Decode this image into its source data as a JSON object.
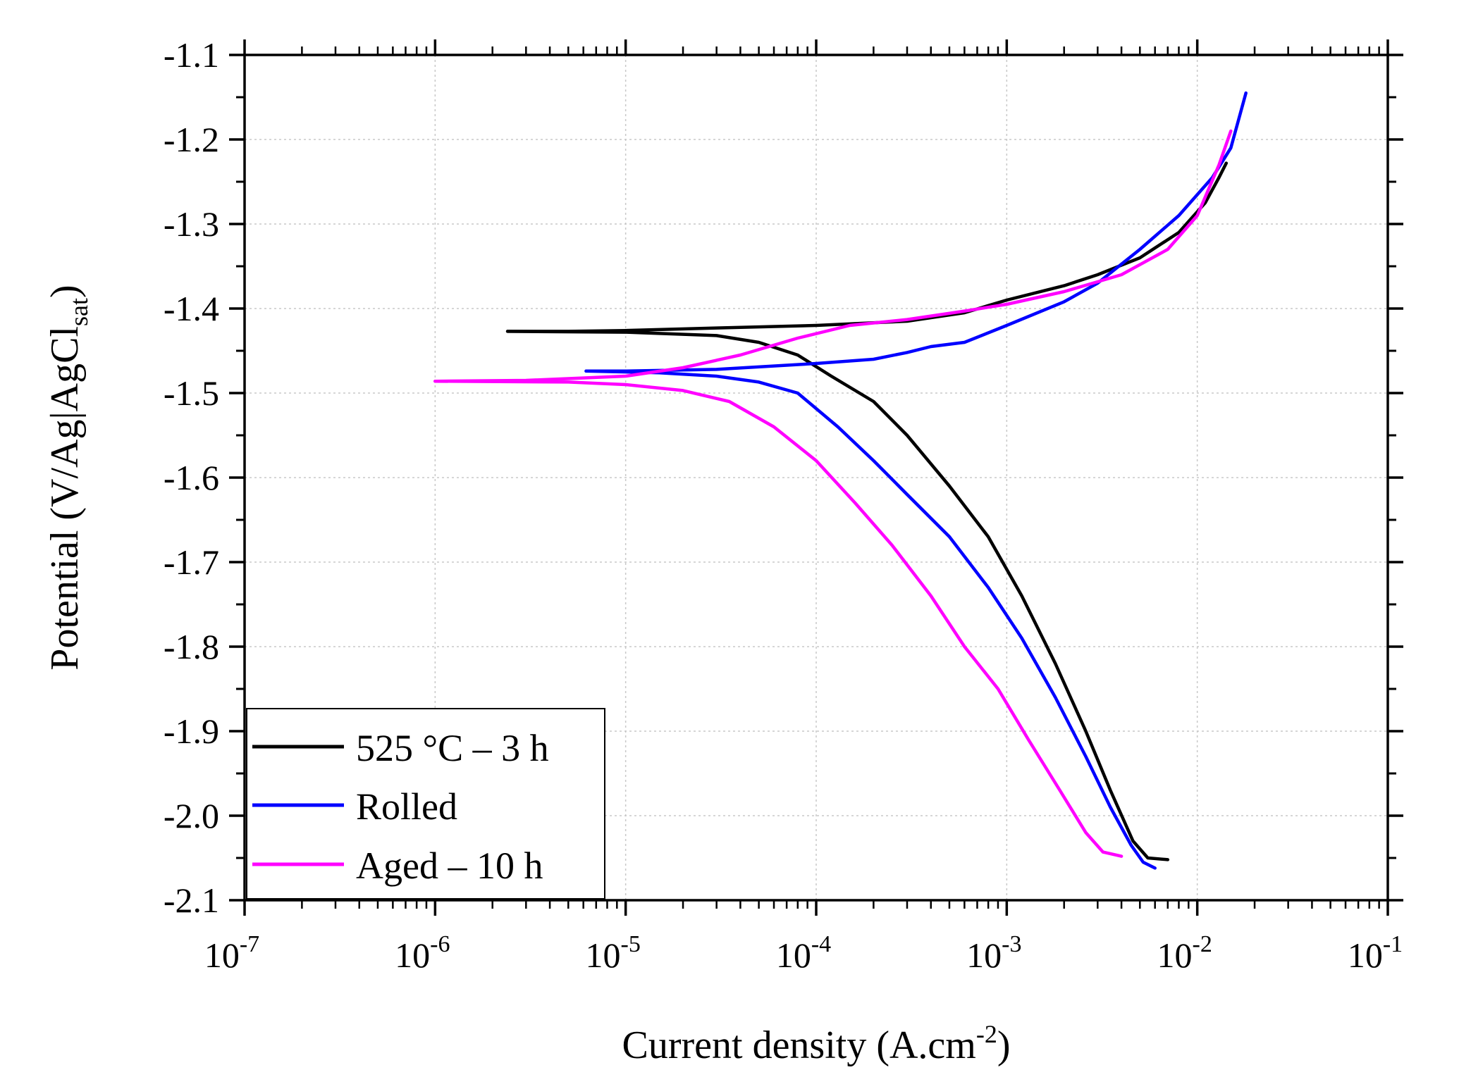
{
  "chart_data": {
    "type": "line",
    "title": "",
    "xlabel": {
      "main": "Current density (A.cm",
      "sup": "-2",
      "end": ")"
    },
    "ylabel": {
      "main": "Potential (V/Ag|AgCl",
      "sub": "sat",
      "end": ")"
    },
    "x_scale": "log",
    "xlim": [
      1e-07,
      0.1
    ],
    "ylim": [
      -2.1,
      -1.1
    ],
    "x_ticks": [
      {
        "base": "10",
        "exp": "-7"
      },
      {
        "base": "10",
        "exp": "-6"
      },
      {
        "base": "10",
        "exp": "-5"
      },
      {
        "base": "10",
        "exp": "-4"
      },
      {
        "base": "10",
        "exp": "-3"
      },
      {
        "base": "10",
        "exp": "-2"
      },
      {
        "base": "10",
        "exp": "-1"
      }
    ],
    "y_ticks": [
      "-1.1",
      "-1.2",
      "-1.3",
      "-1.4",
      "-1.5",
      "-1.6",
      "-1.7",
      "-1.8",
      "-1.9",
      "-2.0",
      "-2.1"
    ],
    "y_tick_values": [
      -1.1,
      -1.2,
      -1.3,
      -1.4,
      -1.5,
      -1.6,
      -1.7,
      -1.8,
      -1.9,
      -2.0,
      -2.1
    ],
    "grid": true,
    "legend_position": "bottom-left",
    "series": [
      {
        "name": "525 °C – 3 h",
        "color": "#000000",
        "anodic": [
          [
            2.4e-06,
            -1.427
          ],
          [
            5e-06,
            -1.427
          ],
          [
            1e-05,
            -1.426
          ],
          [
            3e-05,
            -1.423
          ],
          [
            0.0001,
            -1.42
          ],
          [
            0.0003,
            -1.415
          ],
          [
            0.0006,
            -1.405
          ],
          [
            0.001,
            -1.39
          ],
          [
            0.002,
            -1.373
          ],
          [
            0.003,
            -1.36
          ],
          [
            0.005,
            -1.34
          ],
          [
            0.008,
            -1.31
          ],
          [
            0.011,
            -1.275
          ],
          [
            0.013,
            -1.245
          ],
          [
            0.0142,
            -1.228
          ]
        ],
        "cathodic": [
          [
            2.4e-06,
            -1.427
          ],
          [
            1e-05,
            -1.428
          ],
          [
            3e-05,
            -1.432
          ],
          [
            5e-05,
            -1.44
          ],
          [
            8e-05,
            -1.455
          ],
          [
            0.00012,
            -1.48
          ],
          [
            0.0002,
            -1.51
          ],
          [
            0.0003,
            -1.55
          ],
          [
            0.0005,
            -1.61
          ],
          [
            0.0008,
            -1.67
          ],
          [
            0.0012,
            -1.74
          ],
          [
            0.0018,
            -1.82
          ],
          [
            0.0026,
            -1.9
          ],
          [
            0.0035,
            -1.97
          ],
          [
            0.0046,
            -2.03
          ],
          [
            0.0055,
            -2.05
          ],
          [
            0.007,
            -2.052
          ]
        ]
      },
      {
        "name": "Rolled",
        "color": "#0000ff",
        "anodic": [
          [
            6.2e-06,
            -1.474
          ],
          [
            1e-05,
            -1.474
          ],
          [
            3e-05,
            -1.472
          ],
          [
            0.0001,
            -1.465
          ],
          [
            0.0002,
            -1.46
          ],
          [
            0.0003,
            -1.452
          ],
          [
            0.0004,
            -1.445
          ],
          [
            0.0006,
            -1.44
          ],
          [
            0.001,
            -1.42
          ],
          [
            0.002,
            -1.392
          ],
          [
            0.003,
            -1.37
          ],
          [
            0.005,
            -1.33
          ],
          [
            0.008,
            -1.29
          ],
          [
            0.012,
            -1.245
          ],
          [
            0.015,
            -1.21
          ],
          [
            0.018,
            -1.145
          ]
        ],
        "cathodic": [
          [
            6.2e-06,
            -1.474
          ],
          [
            1.5e-05,
            -1.476
          ],
          [
            3e-05,
            -1.48
          ],
          [
            5e-05,
            -1.487
          ],
          [
            8e-05,
            -1.5
          ],
          [
            0.00013,
            -1.54
          ],
          [
            0.0002,
            -1.58
          ],
          [
            0.0003,
            -1.62
          ],
          [
            0.0005,
            -1.67
          ],
          [
            0.0008,
            -1.73
          ],
          [
            0.0012,
            -1.79
          ],
          [
            0.0018,
            -1.86
          ],
          [
            0.0026,
            -1.93
          ],
          [
            0.0035,
            -1.99
          ],
          [
            0.0045,
            -2.035
          ],
          [
            0.0052,
            -2.055
          ],
          [
            0.006,
            -2.062
          ]
        ]
      },
      {
        "name": "Aged – 10 h",
        "color": "#ff00ff",
        "anodic": [
          [
            1e-06,
            -1.486
          ],
          [
            3e-06,
            -1.485
          ],
          [
            1e-05,
            -1.48
          ],
          [
            2e-05,
            -1.47
          ],
          [
            4e-05,
            -1.455
          ],
          [
            8e-05,
            -1.435
          ],
          [
            0.00015,
            -1.42
          ],
          [
            0.0003,
            -1.413
          ],
          [
            0.0006,
            -1.403
          ],
          [
            0.001,
            -1.395
          ],
          [
            0.002,
            -1.38
          ],
          [
            0.004,
            -1.36
          ],
          [
            0.007,
            -1.33
          ],
          [
            0.01,
            -1.29
          ],
          [
            0.013,
            -1.23
          ],
          [
            0.015,
            -1.19
          ]
        ],
        "cathodic": [
          [
            1e-06,
            -1.486
          ],
          [
            5e-06,
            -1.487
          ],
          [
            1e-05,
            -1.49
          ],
          [
            2e-05,
            -1.497
          ],
          [
            3.5e-05,
            -1.51
          ],
          [
            6e-05,
            -1.54
          ],
          [
            0.0001,
            -1.58
          ],
          [
            0.00016,
            -1.63
          ],
          [
            0.00025,
            -1.68
          ],
          [
            0.0004,
            -1.74
          ],
          [
            0.0006,
            -1.8
          ],
          [
            0.0009,
            -1.85
          ],
          [
            0.0013,
            -1.91
          ],
          [
            0.0019,
            -1.97
          ],
          [
            0.0026,
            -2.02
          ],
          [
            0.0032,
            -2.043
          ],
          [
            0.004,
            -2.048
          ]
        ]
      }
    ]
  }
}
